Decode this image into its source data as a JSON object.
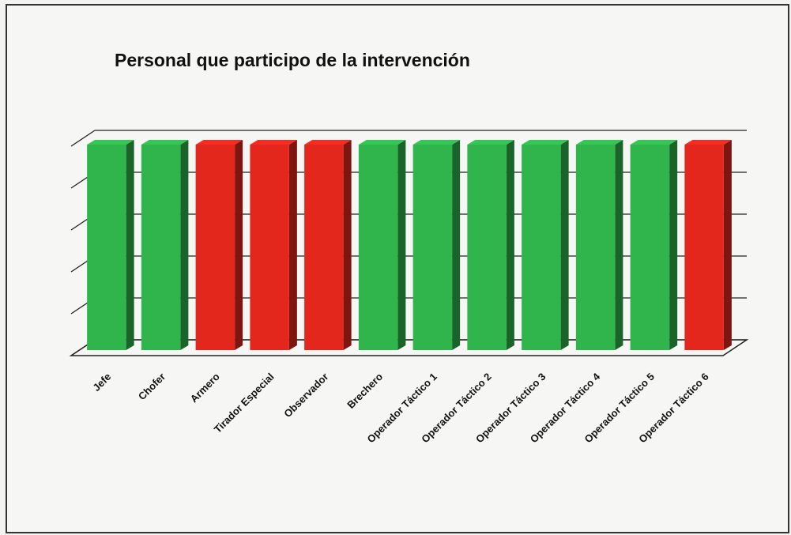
{
  "chart_data": {
    "type": "bar3d",
    "title": "Personal  que participo de la intervención",
    "categories": [
      "Jefe",
      "Chofer",
      "Armero",
      "Tirador Especial",
      "Observador",
      "Brechero",
      "Operador Táctico 1",
      "Operador Táctico 2",
      "Operador Táctico 3",
      "Operador Táctico 4",
      "Operador Táctico 5",
      "Operador Táctico 6"
    ],
    "values": [
      1,
      1,
      1,
      1,
      1,
      1,
      1,
      1,
      1,
      1,
      1,
      1
    ],
    "colors": [
      "#2fb54c",
      "#2fb54c",
      "#e3271d",
      "#e3271d",
      "#e3271d",
      "#2fb54c",
      "#2fb54c",
      "#2fb54c",
      "#2fb54c",
      "#2fb54c",
      "#2fb54c",
      "#e3271d"
    ],
    "ylim": [
      0,
      1
    ],
    "yticks": [
      0,
      0.2,
      0.4,
      0.6,
      0.8,
      1
    ],
    "grid": true
  }
}
